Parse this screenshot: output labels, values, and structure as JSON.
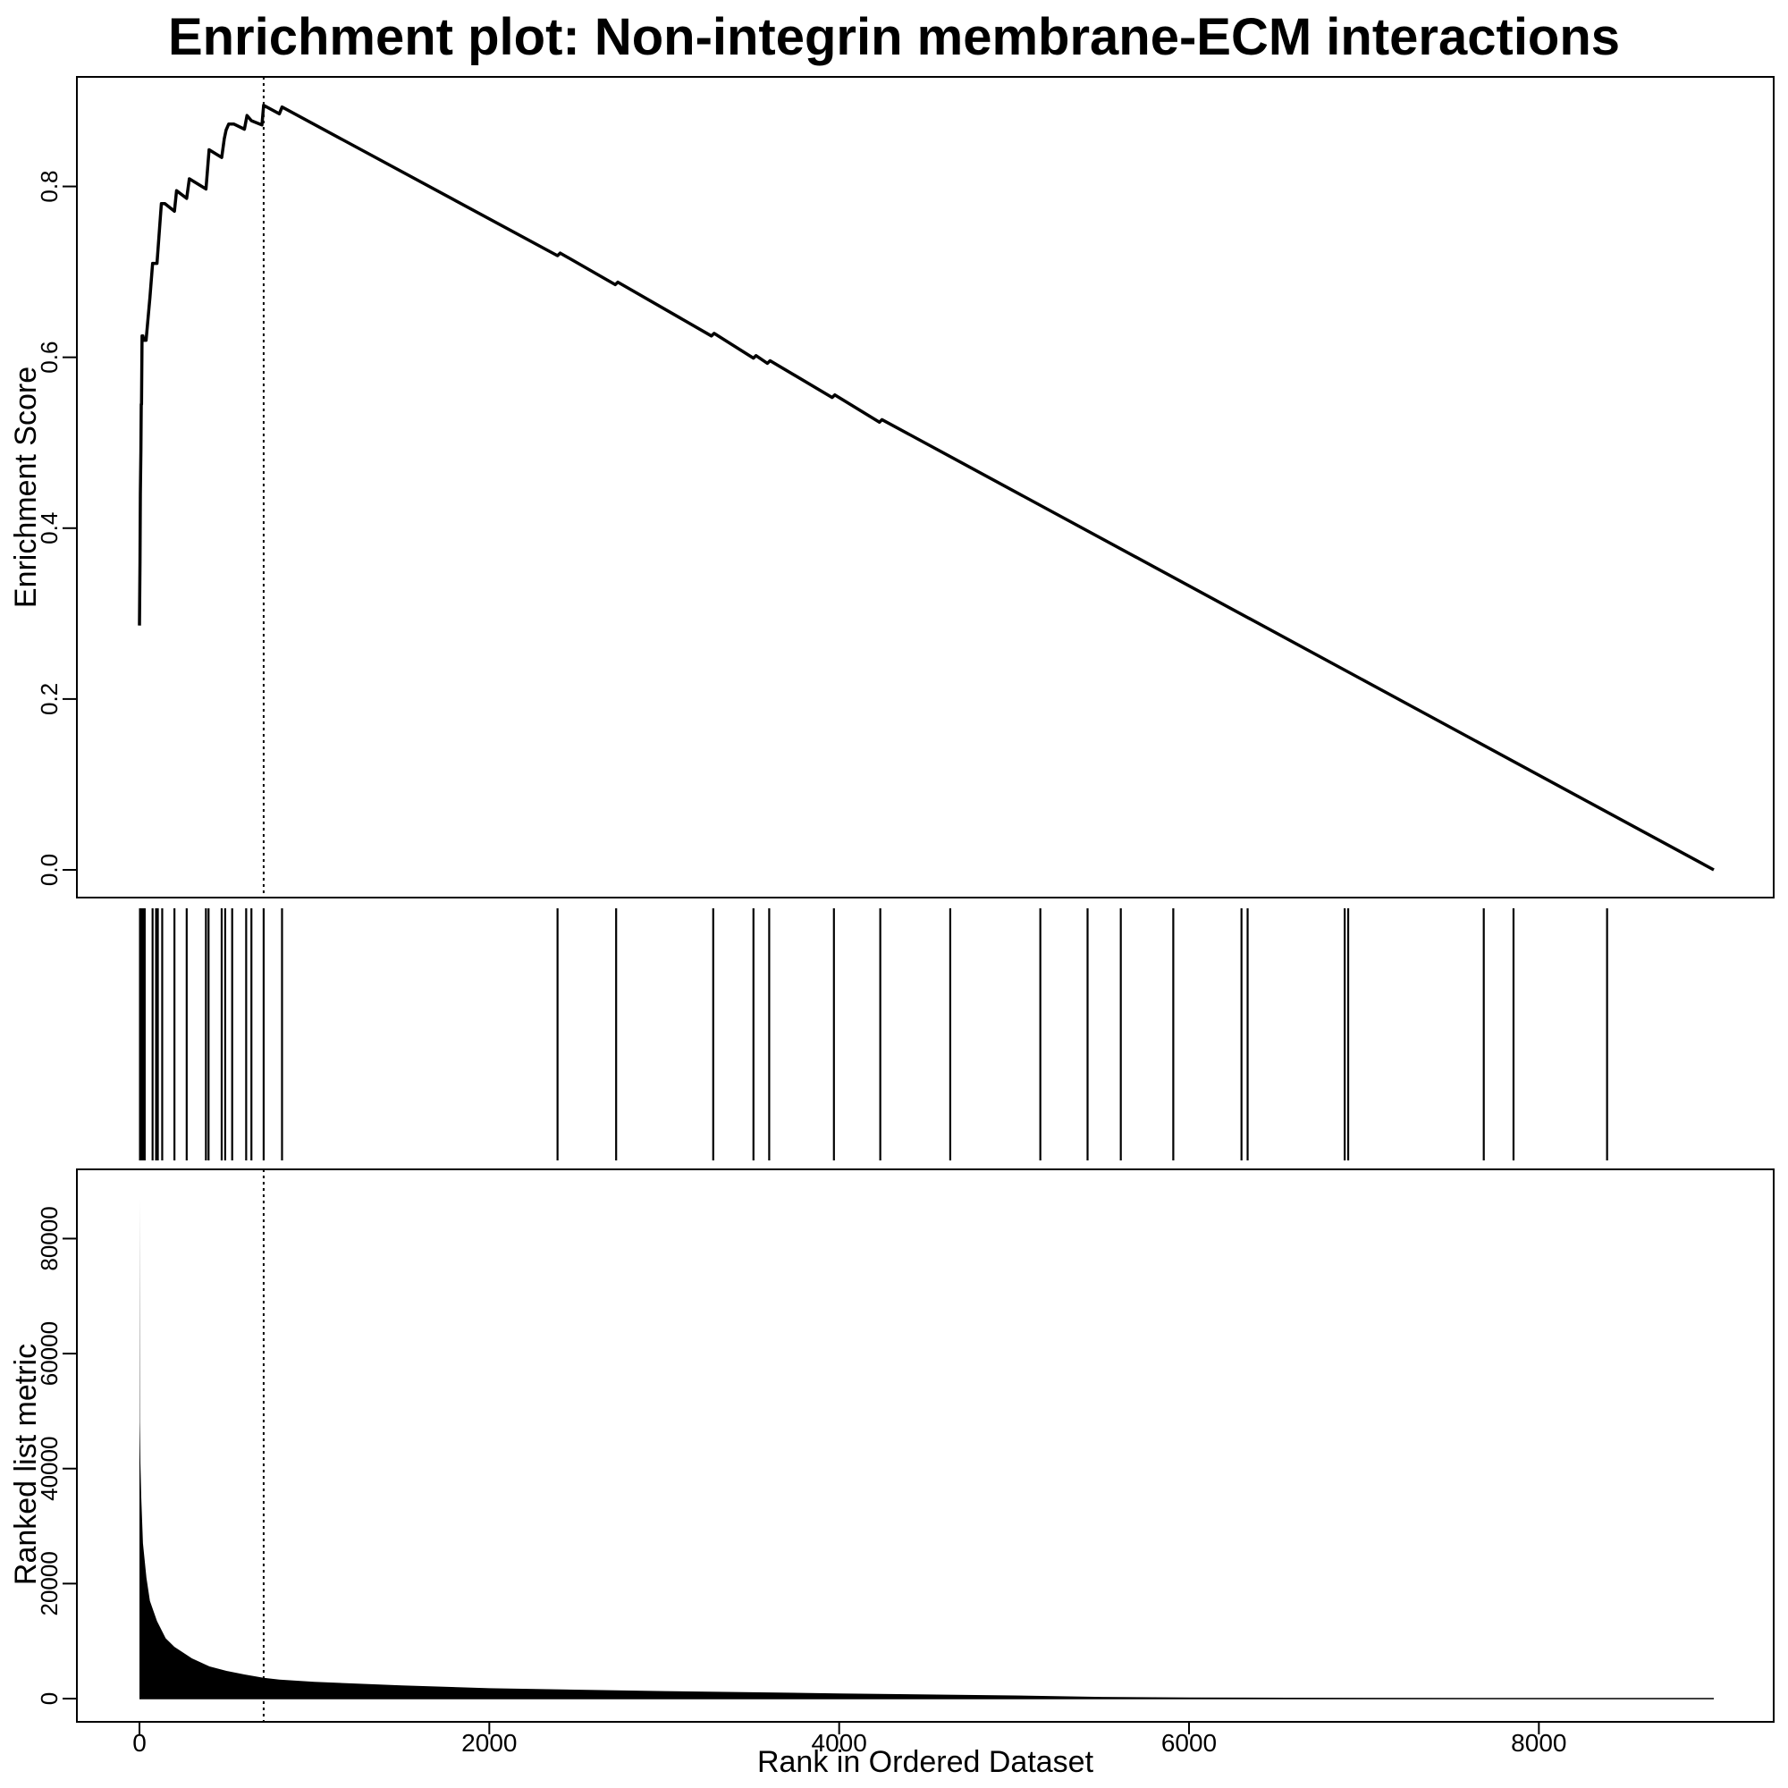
{
  "chart_data": {
    "type": "line",
    "title": "Enrichment plot: Non-integrin membrane-ECM interactions",
    "xlabel": "Rank in Ordered Dataset",
    "x_range": [
      0,
      9000
    ],
    "x_ticks": [
      0,
      2000,
      4000,
      6000,
      8000
    ],
    "x_tick_labels": [
      "0",
      "2000",
      "4000",
      "6000",
      "8000"
    ],
    "enrichment_panel": {
      "ylabel": "Enrichment Score",
      "ylim": [
        0.0,
        0.9
      ],
      "y_ticks": [
        0.0,
        0.2,
        0.4,
        0.6,
        0.8
      ],
      "y_tick_labels": [
        "0.0",
        "0.2",
        "0.4",
        "0.6",
        "0.8"
      ],
      "peak_rank": 710,
      "running_score": {
        "x": [
          0,
          3,
          5,
          8,
          10,
          12,
          15,
          20,
          25,
          38,
          60,
          75,
          100,
          125,
          145,
          200,
          212,
          270,
          285,
          380,
          398,
          470,
          485,
          495,
          510,
          540,
          600,
          615,
          640,
          700,
          710,
          800,
          815,
          2390,
          2405,
          2720,
          2735,
          3270,
          3285,
          3510,
          3525,
          3590,
          3605,
          3960,
          3975,
          4230,
          4245,
          9000
        ],
        "y": [
          0.286,
          0.36,
          0.44,
          0.49,
          0.545,
          0.545,
          0.625,
          0.625,
          0.62,
          0.62,
          0.67,
          0.71,
          0.71,
          0.78,
          0.78,
          0.771,
          0.795,
          0.786,
          0.809,
          0.797,
          0.843,
          0.834,
          0.856,
          0.866,
          0.873,
          0.873,
          0.867,
          0.883,
          0.877,
          0.872,
          0.895,
          0.885,
          0.893,
          0.719,
          0.722,
          0.685,
          0.688,
          0.625,
          0.628,
          0.599,
          0.602,
          0.593,
          0.596,
          0.553,
          0.556,
          0.524,
          0.527,
          0.0
        ]
      }
    },
    "hits_panel": {
      "hit_ranks": [
        3,
        8,
        12,
        18,
        23,
        27,
        30,
        75,
        95,
        105,
        130,
        200,
        270,
        380,
        395,
        470,
        490,
        530,
        610,
        640,
        710,
        815,
        2390,
        2725,
        3280,
        3510,
        3600,
        3970,
        4235,
        4635,
        5150,
        5420,
        5610,
        5910,
        6300,
        6335,
        6890,
        6910,
        7685,
        7855,
        8390
      ]
    },
    "metric_panel": {
      "ylabel": "Ranked list metric",
      "ylim": [
        0,
        88000
      ],
      "y_ticks": [
        0,
        20000,
        40000,
        60000,
        80000
      ],
      "y_tick_labels": [
        "0",
        "20000",
        "40000",
        "60000",
        "80000"
      ],
      "values": {
        "x": [
          0,
          2,
          5,
          10,
          20,
          40,
          60,
          100,
          150,
          200,
          300,
          400,
          500,
          600,
          710,
          800,
          1000,
          1500,
          2000,
          3000,
          4000,
          5000,
          5500,
          6000,
          7000,
          8000,
          9000
        ],
        "y": [
          87000,
          48000,
          41000,
          35000,
          27000,
          21000,
          17000,
          13500,
          10500,
          9000,
          7000,
          5600,
          4800,
          4200,
          3600,
          3300,
          2900,
          2300,
          1800,
          1300,
          900,
          550,
          300,
          200,
          120,
          60,
          0
        ]
      }
    }
  }
}
